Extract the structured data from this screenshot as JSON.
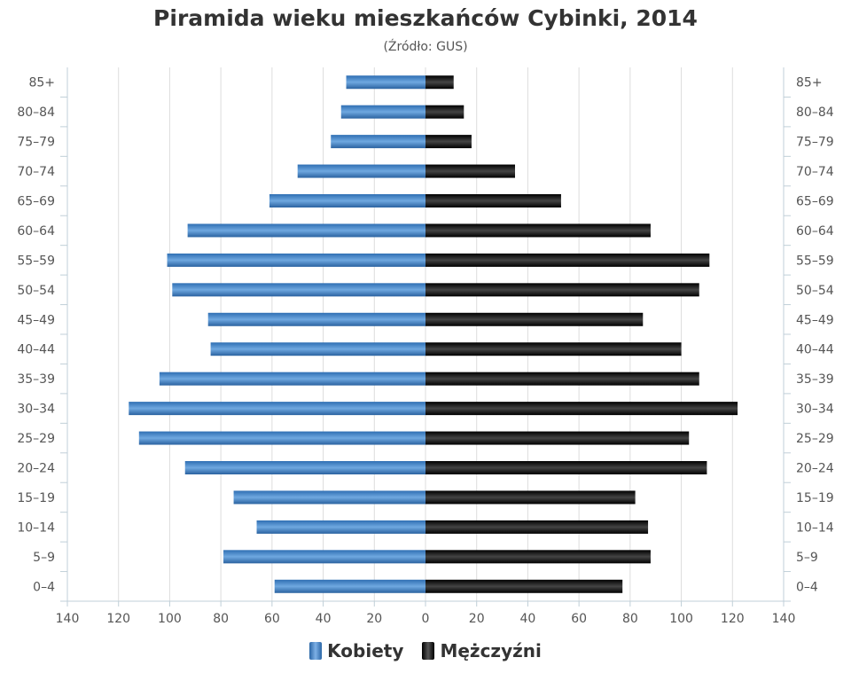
{
  "chart_data": {
    "type": "bar",
    "orientation": "horizontal",
    "layout": "population-pyramid",
    "title": "Piramida wieku mieszkańców Cybinki, 2014",
    "subtitle": "(Źródło: GUS)",
    "categories": [
      "85+",
      "80–84",
      "75–79",
      "70–74",
      "65–69",
      "60–64",
      "55–59",
      "50–54",
      "45–49",
      "40–44",
      "35–39",
      "30–34",
      "25–29",
      "20–24",
      "15–19",
      "10–14",
      "5–9",
      "0–4"
    ],
    "series": [
      {
        "name": "Kobiety",
        "side": "left",
        "color": "#3b7fc4",
        "values": [
          31,
          33,
          37,
          50,
          61,
          93,
          101,
          99,
          85,
          84,
          104,
          116,
          112,
          94,
          75,
          66,
          79,
          59
        ]
      },
      {
        "name": "Mężczyźni",
        "side": "right",
        "color": "#111111",
        "values": [
          11,
          15,
          18,
          35,
          53,
          88,
          111,
          107,
          85,
          100,
          107,
          122,
          103,
          110,
          82,
          87,
          88,
          77
        ]
      }
    ],
    "xaxis": {
      "range": [
        -140,
        140
      ],
      "ticks": [
        "140",
        "120",
        "100",
        "80",
        "60",
        "40",
        "20",
        "0",
        "20",
        "40",
        "60",
        "80",
        "100",
        "120",
        "140"
      ]
    },
    "grid": true,
    "legend_position": "bottom-center"
  }
}
